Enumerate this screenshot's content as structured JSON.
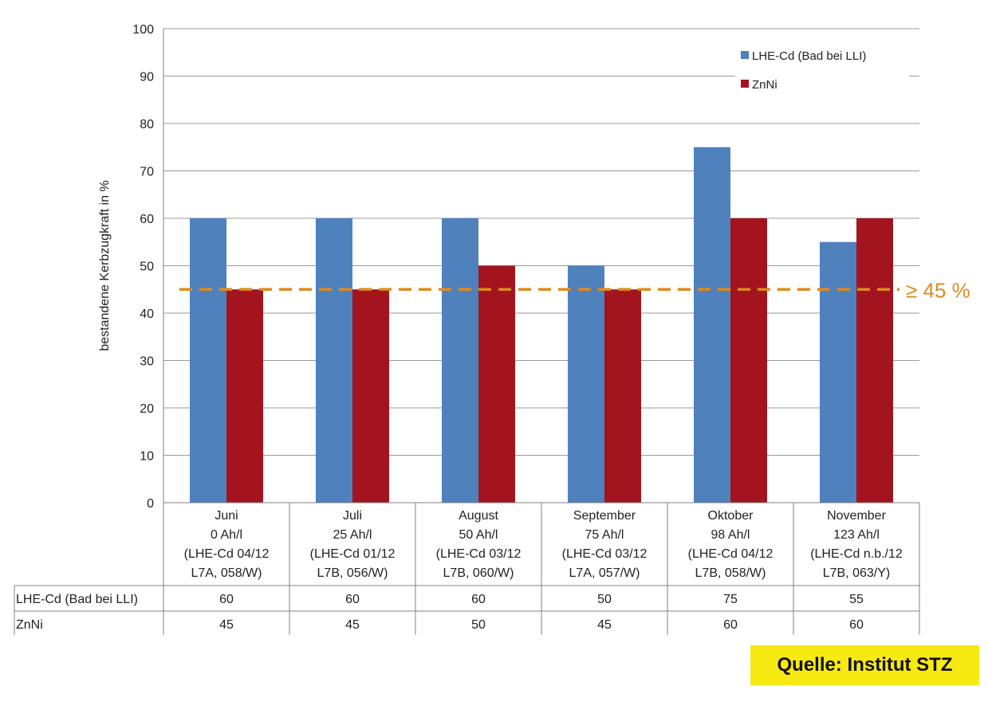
{
  "chart_data": {
    "type": "bar",
    "ylabel": "bestandene Kerbzugkraft in %",
    "ylim": [
      0,
      100
    ],
    "yticks": [
      0,
      10,
      20,
      30,
      40,
      50,
      60,
      70,
      80,
      90,
      100
    ],
    "grid": true,
    "legend_position": "top-right",
    "categories": [
      [
        "Juni",
        "0 Ah/l",
        "(LHE-Cd 04/12",
        "L7A, 058/W)"
      ],
      [
        "Juli",
        "25 Ah/l",
        "(LHE-Cd 01/12",
        "L7B, 056/W)"
      ],
      [
        "August",
        "50 Ah/l",
        "(LHE-Cd 03/12",
        "L7B, 060/W)"
      ],
      [
        "September",
        "75 Ah/l",
        "(LHE-Cd 03/12",
        "L7A, 057/W)"
      ],
      [
        "Oktober",
        "98 Ah/l",
        "(LHE-Cd 04/12",
        "L7B, 058/W)"
      ],
      [
        "November",
        "123 Ah/l",
        "(LHE-Cd n.b./12",
        "L7B, 063/Y)"
      ]
    ],
    "series": [
      {
        "name": "LHE-Cd (Bad bei LLI)",
        "color": "#4f81bd",
        "values": [
          60,
          60,
          60,
          50,
          75,
          55
        ]
      },
      {
        "name": "ZnNi",
        "color": "#a3141e",
        "values": [
          45,
          45,
          50,
          45,
          60,
          60
        ]
      }
    ],
    "threshold": {
      "value": 45,
      "label": "≥ 45 %",
      "color": "#e08a1e"
    }
  },
  "source_label": "Quelle: Institut STZ"
}
